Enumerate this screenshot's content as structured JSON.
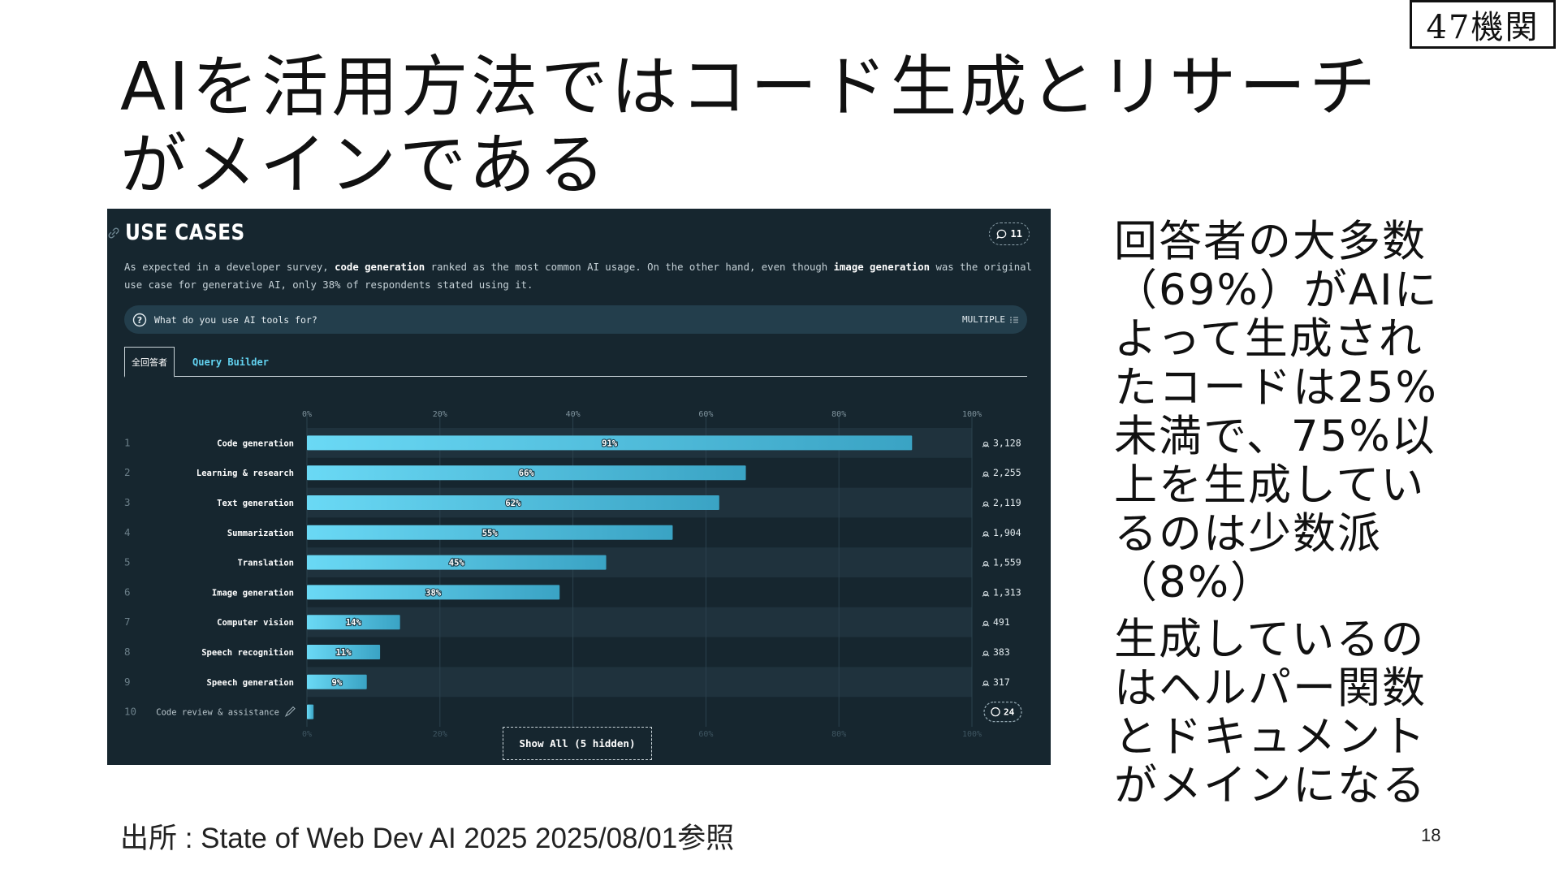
{
  "slide": {
    "title": "AIを活用方法ではコード生成とリサーチがメインである",
    "logo_text": "47機関",
    "side_paragraphs": [
      "回答者の大多数（69%）がAIによって生成されたコードは25%未満で、75%以上を生成しているのは少数派（8%）",
      "生成しているのはヘルパー関数とドキュメントがメインになる"
    ],
    "source": "出所 : State of Web Dev AI 2025 2025/08/01参照",
    "page_number": "18"
  },
  "panel": {
    "title": "USE CASES",
    "comment_count": "11",
    "desc_parts": [
      "As expected in a developer survey, ",
      "code generation",
      " ranked as the most common AI usage. On the other hand, even though ",
      "image generation",
      " was the original use case for generative AI, only 38% of respondents stated using it."
    ],
    "question": "What do you use AI tools for?",
    "question_mode": "MULTIPLE",
    "tabs": [
      "全回答者",
      "Query Builder"
    ],
    "show_all_label": "Show All (5 hidden)",
    "last_row_comment_count": "24"
  },
  "chart_data": {
    "type": "bar",
    "orientation": "horizontal",
    "xlim": [
      0,
      100
    ],
    "x_ticks": [
      "0%",
      "20%",
      "40%",
      "60%",
      "80%",
      "100%"
    ],
    "grid": true,
    "categories": [
      "Code generation",
      "Learning & research",
      "Text generation",
      "Summarization",
      "Translation",
      "Image generation",
      "Computer vision",
      "Speech recognition",
      "Speech generation",
      "Code review & assistance"
    ],
    "ranks": [
      "1",
      "2",
      "3",
      "4",
      "5",
      "6",
      "7",
      "8",
      "9",
      "10"
    ],
    "values": [
      91,
      66,
      62,
      55,
      45,
      38,
      14,
      11,
      9,
      1
    ],
    "value_labels": [
      "91%",
      "66%",
      "62%",
      "55%",
      "45%",
      "38%",
      "14%",
      "11%",
      "9%",
      ""
    ],
    "counts": [
      "3,128",
      "2,255",
      "2,119",
      "1,904",
      "1,559",
      "1,313",
      "491",
      "383",
      "317",
      ""
    ],
    "colors": {
      "bar_start": "#6ad9f5",
      "bar_end": "#3aa3c4",
      "row_band": "#1f323d",
      "background": "#16262f"
    }
  }
}
